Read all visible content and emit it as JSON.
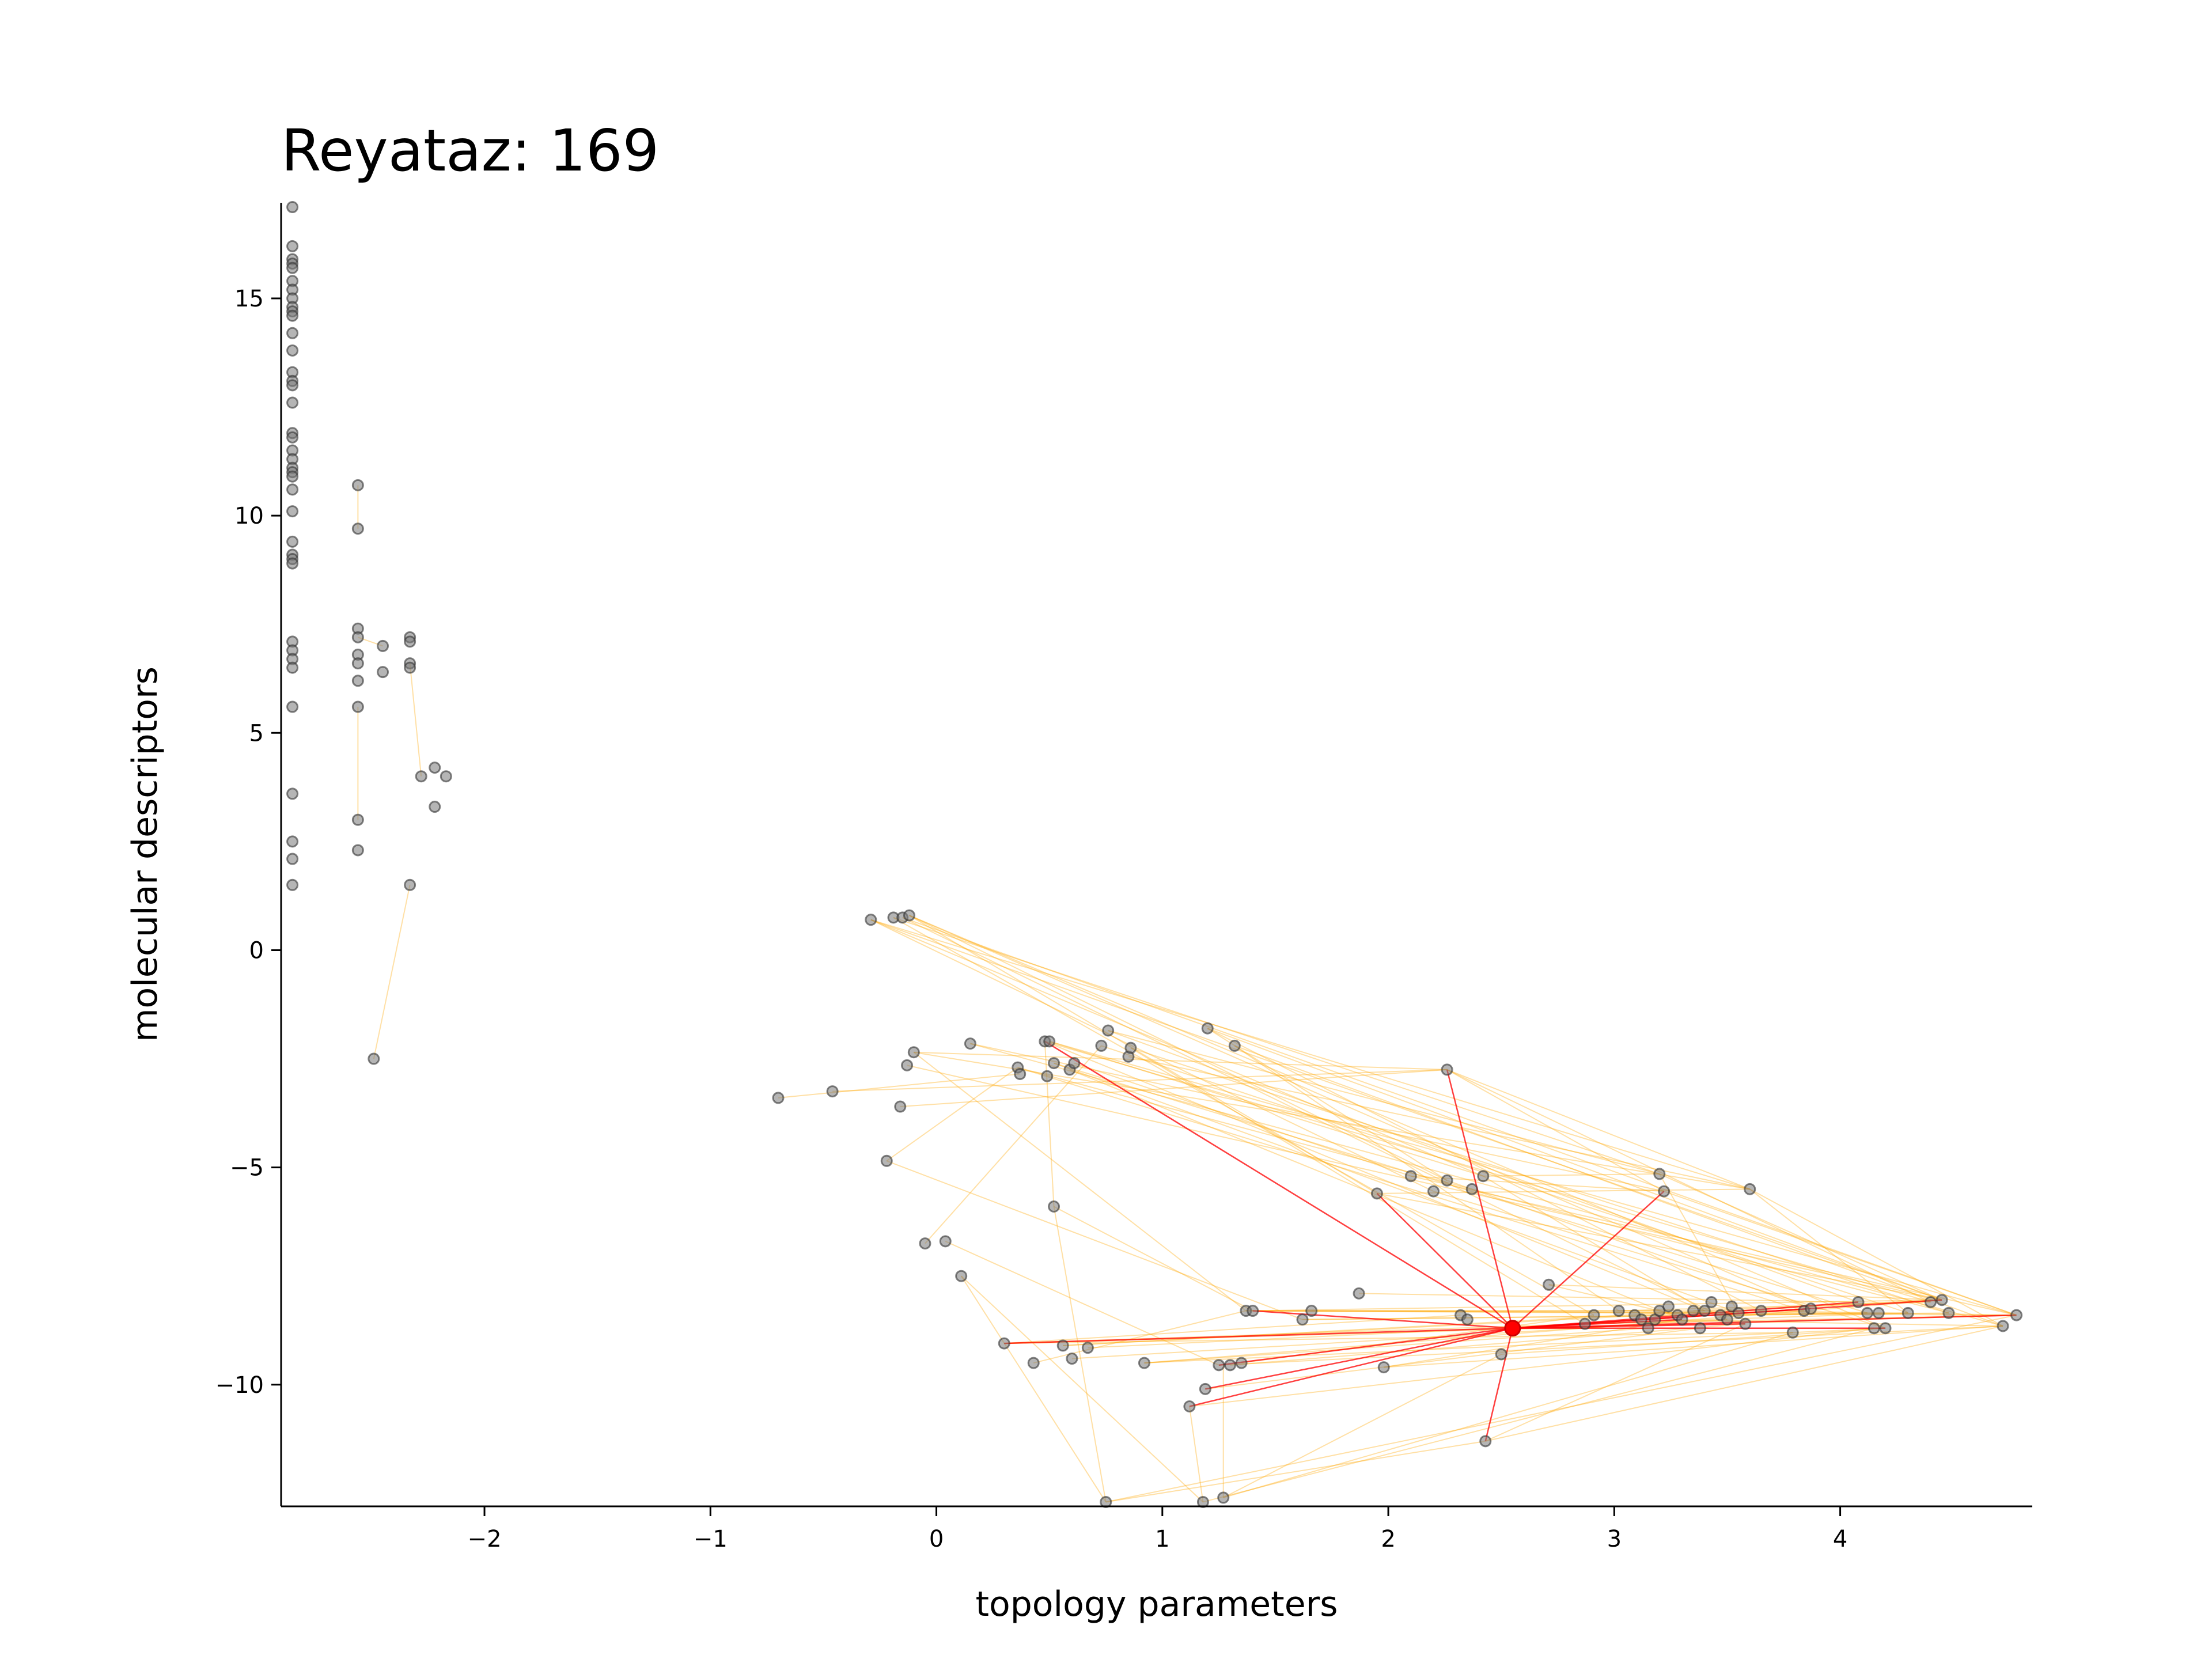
{
  "chart_data": {
    "type": "scatter",
    "title": "Reyataz: 169",
    "xlabel": "topology parameters",
    "ylabel": "molecular descriptors",
    "xlim": [
      -2.9,
      4.85
    ],
    "ylim": [
      -12.8,
      17.2
    ],
    "xticks": [
      -2,
      -1,
      0,
      1,
      2,
      3,
      4
    ],
    "xtick_labels": [
      "−2",
      "−1",
      "0",
      "1",
      "2",
      "3",
      "4"
    ],
    "yticks": [
      -10,
      -5,
      0,
      5,
      10,
      15
    ],
    "ytick_labels": [
      "−10",
      "−5",
      "0",
      "5",
      "10",
      "15"
    ],
    "grid": false,
    "highlight": {
      "x": 2.55,
      "y": -8.7,
      "color": "#ff0000"
    },
    "edge_color": "#ffa500",
    "highlight_edge_color": "#ff0000",
    "points": [
      [
        -2.85,
        17.1
      ],
      [
        -2.85,
        16.2
      ],
      [
        -2.85,
        15.9
      ],
      [
        -2.85,
        15.8
      ],
      [
        -2.85,
        15.7
      ],
      [
        -2.85,
        15.4
      ],
      [
        -2.85,
        15.2
      ],
      [
        -2.85,
        15.0
      ],
      [
        -2.85,
        14.8
      ],
      [
        -2.85,
        14.7
      ],
      [
        -2.85,
        14.6
      ],
      [
        -2.85,
        14.2
      ],
      [
        -2.85,
        13.8
      ],
      [
        -2.85,
        13.3
      ],
      [
        -2.85,
        13.1
      ],
      [
        -2.85,
        13.0
      ],
      [
        -2.85,
        12.6
      ],
      [
        -2.85,
        11.9
      ],
      [
        -2.85,
        11.8
      ],
      [
        -2.85,
        11.5
      ],
      [
        -2.85,
        11.3
      ],
      [
        -2.85,
        11.1
      ],
      [
        -2.85,
        11.0
      ],
      [
        -2.85,
        10.9
      ],
      [
        -2.85,
        10.6
      ],
      [
        -2.85,
        10.1
      ],
      [
        -2.85,
        9.4
      ],
      [
        -2.85,
        9.1
      ],
      [
        -2.85,
        9.0
      ],
      [
        -2.85,
        8.9
      ],
      [
        -2.85,
        7.1
      ],
      [
        -2.85,
        6.9
      ],
      [
        -2.85,
        6.7
      ],
      [
        -2.85,
        6.5
      ],
      [
        -2.85,
        5.6
      ],
      [
        -2.85,
        3.6
      ],
      [
        -2.85,
        2.5
      ],
      [
        -2.85,
        2.1
      ],
      [
        -2.85,
        1.5
      ],
      [
        -2.56,
        10.7
      ],
      [
        -2.56,
        9.7
      ],
      [
        -2.56,
        7.4
      ],
      [
        -2.56,
        7.2
      ],
      [
        -2.56,
        6.8
      ],
      [
        -2.56,
        6.6
      ],
      [
        -2.56,
        6.2
      ],
      [
        -2.56,
        5.6
      ],
      [
        -2.56,
        3.0
      ],
      [
        -2.56,
        2.3
      ],
      [
        -2.49,
        -2.5
      ],
      [
        -2.45,
        7.0
      ],
      [
        -2.45,
        6.4
      ],
      [
        -2.33,
        7.2
      ],
      [
        -2.33,
        7.1
      ],
      [
        -2.33,
        6.6
      ],
      [
        -2.33,
        6.5
      ],
      [
        -2.33,
        1.5
      ],
      [
        -2.28,
        4.0
      ],
      [
        -2.22,
        4.2
      ],
      [
        -2.22,
        3.3
      ],
      [
        -2.17,
        4.0
      ],
      [
        -0.7,
        -3.4
      ],
      [
        -0.46,
        -3.25
      ],
      [
        -0.29,
        0.7
      ],
      [
        -0.19,
        0.75
      ],
      [
        -0.15,
        0.75
      ],
      [
        -0.12,
        0.8
      ],
      [
        -0.22,
        -4.85
      ],
      [
        -0.16,
        -3.6
      ],
      [
        -0.13,
        -2.65
      ],
      [
        -0.1,
        -2.35
      ],
      [
        -0.05,
        -6.75
      ],
      [
        0.04,
        -6.7
      ],
      [
        0.11,
        -7.5
      ],
      [
        0.15,
        -2.15
      ],
      [
        0.3,
        -9.05
      ],
      [
        0.36,
        -2.7
      ],
      [
        0.37,
        -2.85
      ],
      [
        0.43,
        -9.5
      ],
      [
        0.48,
        -2.1
      ],
      [
        0.49,
        -2.9
      ],
      [
        0.5,
        -2.1
      ],
      [
        0.52,
        -5.9
      ],
      [
        0.52,
        -2.6
      ],
      [
        0.56,
        -9.1
      ],
      [
        0.59,
        -2.75
      ],
      [
        0.6,
        -9.4
      ],
      [
        0.61,
        -2.6
      ],
      [
        0.67,
        -9.15
      ],
      [
        0.73,
        -2.2
      ],
      [
        0.75,
        -12.7
      ],
      [
        0.76,
        -1.85
      ],
      [
        0.85,
        -2.45
      ],
      [
        0.86,
        -2.25
      ],
      [
        0.92,
        -9.5
      ],
      [
        1.12,
        -10.5
      ],
      [
        1.19,
        -10.1
      ],
      [
        1.2,
        -1.8
      ],
      [
        1.18,
        -12.7
      ],
      [
        1.25,
        -9.55
      ],
      [
        1.27,
        -12.6
      ],
      [
        1.3,
        -9.55
      ],
      [
        1.32,
        -2.2
      ],
      [
        1.35,
        -9.5
      ],
      [
        1.37,
        -8.3
      ],
      [
        1.4,
        -8.3
      ],
      [
        1.62,
        -8.5
      ],
      [
        1.66,
        -8.3
      ],
      [
        1.87,
        -7.9
      ],
      [
        1.95,
        -5.6
      ],
      [
        1.98,
        -9.6
      ],
      [
        2.1,
        -5.2
      ],
      [
        2.2,
        -5.55
      ],
      [
        2.26,
        -5.3
      ],
      [
        2.26,
        -2.75
      ],
      [
        2.32,
        -8.4
      ],
      [
        2.35,
        -8.5
      ],
      [
        2.37,
        -5.5
      ],
      [
        2.42,
        -5.2
      ],
      [
        2.43,
        -11.3
      ],
      [
        2.5,
        -9.3
      ],
      [
        2.55,
        -8.7
      ],
      [
        2.71,
        -7.7
      ],
      [
        2.87,
        -8.6
      ],
      [
        2.91,
        -8.4
      ],
      [
        3.02,
        -8.3
      ],
      [
        3.09,
        -8.4
      ],
      [
        3.12,
        -8.5
      ],
      [
        3.15,
        -8.7
      ],
      [
        3.18,
        -8.5
      ],
      [
        3.2,
        -5.15
      ],
      [
        3.2,
        -8.3
      ],
      [
        3.22,
        -5.55
      ],
      [
        3.24,
        -8.2
      ],
      [
        3.28,
        -8.4
      ],
      [
        3.3,
        -8.5
      ],
      [
        3.35,
        -8.3
      ],
      [
        3.38,
        -8.7
      ],
      [
        3.4,
        -8.3
      ],
      [
        3.43,
        -8.1
      ],
      [
        3.47,
        -8.4
      ],
      [
        3.5,
        -8.5
      ],
      [
        3.52,
        -8.2
      ],
      [
        3.55,
        -8.35
      ],
      [
        3.58,
        -8.6
      ],
      [
        3.6,
        -5.5
      ],
      [
        3.65,
        -8.3
      ],
      [
        3.79,
        -8.8
      ],
      [
        3.84,
        -8.3
      ],
      [
        3.87,
        -8.25
      ],
      [
        4.08,
        -8.1
      ],
      [
        4.12,
        -8.35
      ],
      [
        4.15,
        -8.7
      ],
      [
        4.17,
        -8.35
      ],
      [
        4.2,
        -8.7
      ],
      [
        4.3,
        -8.35
      ],
      [
        4.4,
        -8.1
      ],
      [
        4.45,
        -8.05
      ],
      [
        4.48,
        -8.35
      ],
      [
        4.72,
        -8.65
      ],
      [
        4.78,
        -8.4
      ]
    ],
    "edges": [
      [
        -0.29,
        0.7,
        3.6,
        -5.5
      ],
      [
        -0.29,
        0.7,
        4.45,
        -8.05
      ],
      [
        -0.19,
        0.75,
        3.2,
        -5.15
      ],
      [
        -0.15,
        0.75,
        4.78,
        -8.4
      ],
      [
        -0.12,
        0.8,
        2.26,
        -5.3
      ],
      [
        -0.12,
        0.8,
        3.87,
        -8.25
      ],
      [
        -0.29,
        0.7,
        2.42,
        -5.2
      ],
      [
        -0.12,
        0.8,
        4.2,
        -8.7
      ],
      [
        -0.19,
        0.75,
        2.91,
        -8.4
      ],
      [
        -0.15,
        0.75,
        3.5,
        -8.5
      ],
      [
        -0.12,
        0.8,
        1.95,
        -5.6
      ],
      [
        -0.29,
        0.7,
        2.2,
        -5.55
      ],
      [
        -0.1,
        -2.35,
        2.26,
        -2.75
      ],
      [
        -0.1,
        -2.35,
        3.6,
        -5.5
      ],
      [
        -0.13,
        -2.65,
        4.45,
        -8.05
      ],
      [
        0.15,
        -2.15,
        3.22,
        -5.55
      ],
      [
        0.15,
        -2.15,
        4.72,
        -8.65
      ],
      [
        0.36,
        -2.7,
        3.84,
        -8.3
      ],
      [
        0.36,
        -2.7,
        2.37,
        -5.5
      ],
      [
        0.48,
        -2.1,
        4.4,
        -8.1
      ],
      [
        0.48,
        -2.1,
        3.4,
        -8.3
      ],
      [
        0.5,
        -2.1,
        4.78,
        -8.4
      ],
      [
        0.5,
        -2.1,
        2.42,
        -5.2
      ],
      [
        0.52,
        -2.6,
        3.55,
        -8.35
      ],
      [
        0.52,
        -2.6,
        4.12,
        -8.35
      ],
      [
        0.59,
        -2.75,
        3.3,
        -8.5
      ],
      [
        0.61,
        -2.6,
        2.1,
        -5.2
      ],
      [
        0.73,
        -2.2,
        4.3,
        -8.35
      ],
      [
        0.76,
        -1.85,
        3.2,
        -5.15
      ],
      [
        0.76,
        -1.85,
        4.08,
        -8.1
      ],
      [
        0.85,
        -2.45,
        3.6,
        -5.5
      ],
      [
        0.86,
        -2.25,
        4.48,
        -8.35
      ],
      [
        1.2,
        -1.8,
        3.65,
        -8.3
      ],
      [
        1.2,
        -1.8,
        4.45,
        -8.05
      ],
      [
        1.32,
        -2.2,
        3.02,
        -8.3
      ],
      [
        1.32,
        -2.2,
        4.72,
        -8.65
      ],
      [
        1.2,
        -1.8,
        2.26,
        -5.3
      ],
      [
        0.86,
        -2.25,
        2.87,
        -8.6
      ],
      [
        -0.1,
        -2.35,
        1.37,
        -8.3
      ],
      [
        -0.46,
        -3.25,
        2.26,
        -2.75
      ],
      [
        -0.7,
        -3.4,
        0.37,
        -2.85
      ],
      [
        -0.16,
        -3.6,
        2.26,
        -2.75
      ],
      [
        -0.22,
        -4.85,
        1.62,
        -8.5
      ],
      [
        -0.22,
        -4.85,
        0.36,
        -2.7
      ],
      [
        0.52,
        -5.9,
        0.48,
        -2.1
      ],
      [
        0.52,
        -5.9,
        1.4,
        -8.3
      ],
      [
        -0.05,
        -6.75,
        0.73,
        -2.2
      ],
      [
        0.04,
        -6.7,
        1.25,
        -9.55
      ],
      [
        0.11,
        -7.5,
        0.75,
        -12.7
      ],
      [
        0.11,
        -7.5,
        1.18,
        -12.7
      ],
      [
        0.3,
        -9.05,
        4.78,
        -8.4
      ],
      [
        0.3,
        -9.05,
        3.79,
        -8.8
      ],
      [
        0.3,
        -9.05,
        2.32,
        -8.4
      ],
      [
        0.43,
        -9.5,
        1.37,
        -8.3
      ],
      [
        0.56,
        -9.1,
        4.45,
        -8.05
      ],
      [
        0.6,
        -9.4,
        3.5,
        -8.5
      ],
      [
        0.67,
        -9.15,
        2.87,
        -8.6
      ],
      [
        0.92,
        -9.5,
        4.2,
        -8.7
      ],
      [
        0.92,
        -9.5,
        3.15,
        -8.7
      ],
      [
        1.12,
        -10.5,
        4.15,
        -8.7
      ],
      [
        1.19,
        -10.1,
        3.38,
        -8.7
      ],
      [
        1.25,
        -9.55,
        4.72,
        -8.65
      ],
      [
        1.3,
        -9.55,
        3.58,
        -8.6
      ],
      [
        1.35,
        -9.5,
        2.91,
        -8.4
      ],
      [
        0.75,
        -12.7,
        2.43,
        -11.3
      ],
      [
        0.75,
        -12.7,
        4.78,
        -8.4
      ],
      [
        1.18,
        -12.7,
        4.15,
        -8.7
      ],
      [
        1.27,
        -12.6,
        3.79,
        -8.8
      ],
      [
        1.27,
        -12.6,
        2.5,
        -9.3
      ],
      [
        1.18,
        -12.7,
        1.12,
        -10.5
      ],
      [
        0.75,
        -12.7,
        0.52,
        -5.9
      ],
      [
        1.27,
        -12.6,
        1.27,
        -9.55
      ],
      [
        1.37,
        -8.3,
        4.78,
        -8.4
      ],
      [
        1.4,
        -8.3,
        4.45,
        -8.05
      ],
      [
        1.37,
        -8.3,
        3.84,
        -8.3
      ],
      [
        1.4,
        -8.3,
        3.2,
        -8.3
      ],
      [
        1.62,
        -8.5,
        4.3,
        -8.35
      ],
      [
        1.66,
        -8.3,
        3.55,
        -8.35
      ],
      [
        1.87,
        -7.9,
        4.08,
        -8.1
      ],
      [
        1.98,
        -9.6,
        4.72,
        -8.65
      ],
      [
        1.98,
        -9.6,
        3.3,
        -8.5
      ],
      [
        1.95,
        -5.6,
        4.45,
        -8.05
      ],
      [
        1.95,
        -5.6,
        3.6,
        -5.5
      ],
      [
        2.1,
        -5.2,
        4.78,
        -8.4
      ],
      [
        2.1,
        -5.2,
        3.22,
        -5.55
      ],
      [
        2.2,
        -5.55,
        4.2,
        -8.7
      ],
      [
        2.26,
        -5.3,
        3.87,
        -8.25
      ],
      [
        2.37,
        -5.5,
        4.48,
        -8.35
      ],
      [
        2.42,
        -5.2,
        3.4,
        -8.3
      ],
      [
        2.42,
        -5.2,
        3.2,
        -5.15
      ],
      [
        2.26,
        -2.75,
        3.6,
        -5.5
      ],
      [
        2.26,
        -2.75,
        4.4,
        -8.1
      ],
      [
        2.26,
        -2.75,
        3.22,
        -5.55
      ],
      [
        2.43,
        -11.3,
        4.72,
        -8.65
      ],
      [
        2.43,
        -11.3,
        3.58,
        -8.6
      ],
      [
        2.5,
        -9.3,
        4.2,
        -8.7
      ],
      [
        2.71,
        -7.7,
        4.45,
        -8.05
      ],
      [
        2.71,
        -7.7,
        3.28,
        -8.4
      ],
      [
        2.87,
        -8.6,
        4.78,
        -8.4
      ],
      [
        3.02,
        -8.3,
        4.4,
        -8.1
      ],
      [
        3.2,
        -5.15,
        4.45,
        -8.05
      ],
      [
        3.22,
        -5.55,
        4.78,
        -8.4
      ],
      [
        3.6,
        -5.5,
        4.72,
        -8.65
      ],
      [
        3.6,
        -5.5,
        4.3,
        -8.35
      ],
      [
        3.2,
        -5.15,
        3.55,
        -8.35
      ],
      [
        3.12,
        -8.5,
        4.72,
        -8.65
      ],
      [
        3.35,
        -8.3,
        4.45,
        -8.05
      ],
      [
        3.47,
        -8.4,
        4.12,
        -8.35
      ],
      [
        3.65,
        -8.3,
        4.78,
        -8.4
      ],
      [
        1.37,
        -8.3,
        4.12,
        -8.35
      ],
      [
        1.62,
        -8.5,
        4.48,
        -8.35
      ],
      [
        0.3,
        -9.05,
        4.3,
        -8.35
      ],
      [
        0.56,
        -9.1,
        3.4,
        -8.3
      ],
      [
        0.92,
        -9.5,
        4.45,
        -8.05
      ],
      [
        -2.56,
        5.6,
        -2.56,
        3.0
      ],
      [
        -2.33,
        1.5,
        -2.49,
        -2.5
      ],
      [
        -2.56,
        10.7,
        -2.56,
        9.7
      ],
      [
        -2.56,
        7.2,
        -2.45,
        7.0
      ],
      [
        -2.33,
        6.6,
        -2.28,
        4.0
      ]
    ],
    "highlight_edges": [
      [
        0.48,
        -2.1,
        2.55,
        -8.7
      ],
      [
        2.26,
        -2.75,
        2.55,
        -8.7
      ],
      [
        3.22,
        -5.55,
        2.55,
        -8.7
      ],
      [
        1.95,
        -5.6,
        2.55,
        -8.7
      ],
      [
        0.3,
        -9.05,
        2.55,
        -8.7
      ],
      [
        1.12,
        -10.5,
        2.55,
        -8.7
      ],
      [
        1.25,
        -9.55,
        2.55,
        -8.7
      ],
      [
        2.43,
        -11.3,
        2.55,
        -8.7
      ],
      [
        1.4,
        -8.3,
        2.55,
        -8.7
      ],
      [
        4.45,
        -8.05,
        2.55,
        -8.7
      ],
      [
        4.78,
        -8.4,
        2.55,
        -8.7
      ],
      [
        3.58,
        -8.6,
        2.55,
        -8.7
      ],
      [
        4.2,
        -8.7,
        2.55,
        -8.7
      ],
      [
        3.3,
        -8.5,
        2.55,
        -8.7
      ],
      [
        2.87,
        -8.6,
        2.55,
        -8.7
      ],
      [
        4.08,
        -8.1,
        2.55,
        -8.7
      ],
      [
        1.19,
        -10.1,
        2.55,
        -8.7
      ],
      [
        3.87,
        -8.25,
        2.55,
        -8.7
      ]
    ]
  }
}
